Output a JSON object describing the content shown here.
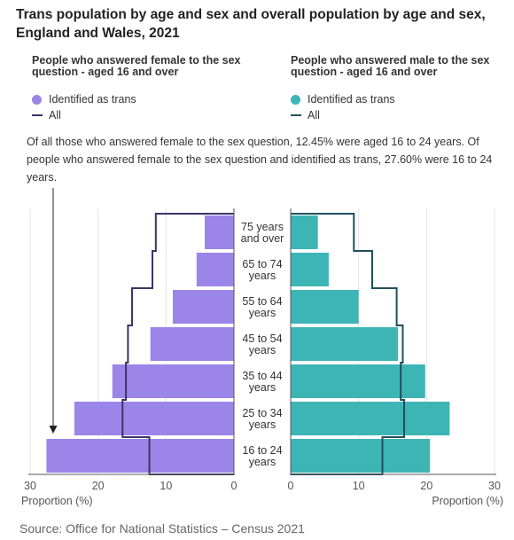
{
  "title": "Trans population by age and sex and overall population by age and sex, England and Wales, 2021",
  "left_panel": {
    "heading": "People who answered female to the sex question - aged 16 and over",
    "legend_trans": "Identified as trans",
    "legend_all": "All"
  },
  "right_panel": {
    "heading": "People who answered male to the sex question - aged 16 and over",
    "legend_trans": "Identified as trans",
    "legend_all": "All"
  },
  "annotation": "Of all those who answered female to the sex question, 12.45% were aged 16 to 24 years. Of people who answered female to the sex question and identified as trans, 27.60% were 16 to 24 years.",
  "source": "Source: Office for National Statistics – Census 2021",
  "colors": {
    "female_trans": "#9b85e8",
    "female_all": "#3d3466",
    "male_trans": "#3db5b5",
    "male_all": "#1f4f5c"
  },
  "chart_data": {
    "type": "bar",
    "orientation": "horizontal-population-pyramid",
    "categories": [
      "75 years and over",
      "65 to 74 years",
      "55 to 64 years",
      "45 to 54 years",
      "35 to 44 years",
      "25 to 34 years",
      "16 to 24 years"
    ],
    "category_labels": [
      [
        "75 years",
        "and over"
      ],
      [
        "65 to 74",
        "years"
      ],
      [
        "55 to 64",
        "years"
      ],
      [
        "45 to 54",
        "years"
      ],
      [
        "35 to 44",
        "years"
      ],
      [
        "25 to 34",
        "years"
      ],
      [
        "16 to 24",
        "years"
      ]
    ],
    "series": [
      {
        "name": "Female - Identified as trans",
        "side": "left",
        "mark": "bar",
        "values": [
          4.3,
          5.5,
          9.0,
          12.3,
          17.9,
          23.5,
          27.6
        ]
      },
      {
        "name": "Female - All",
        "side": "left",
        "mark": "step-line",
        "values": [
          11.5,
          12.0,
          15.0,
          15.6,
          15.9,
          16.4,
          12.45
        ]
      },
      {
        "name": "Male - Identified as trans",
        "side": "right",
        "mark": "bar",
        "values": [
          4.0,
          5.6,
          10.0,
          15.8,
          19.8,
          23.4,
          20.5
        ]
      },
      {
        "name": "Male - All",
        "side": "right",
        "mark": "step-line",
        "values": [
          9.3,
          12.0,
          15.6,
          16.5,
          16.2,
          16.7,
          13.5
        ]
      }
    ],
    "xlim": [
      0,
      30
    ],
    "x_ticks": [
      "30",
      "20",
      "10",
      "0",
      "0",
      "10",
      "20",
      "30"
    ],
    "xlabel_left": "Proportion (%)",
    "xlabel_right": "Proportion (%)",
    "grid": true
  }
}
